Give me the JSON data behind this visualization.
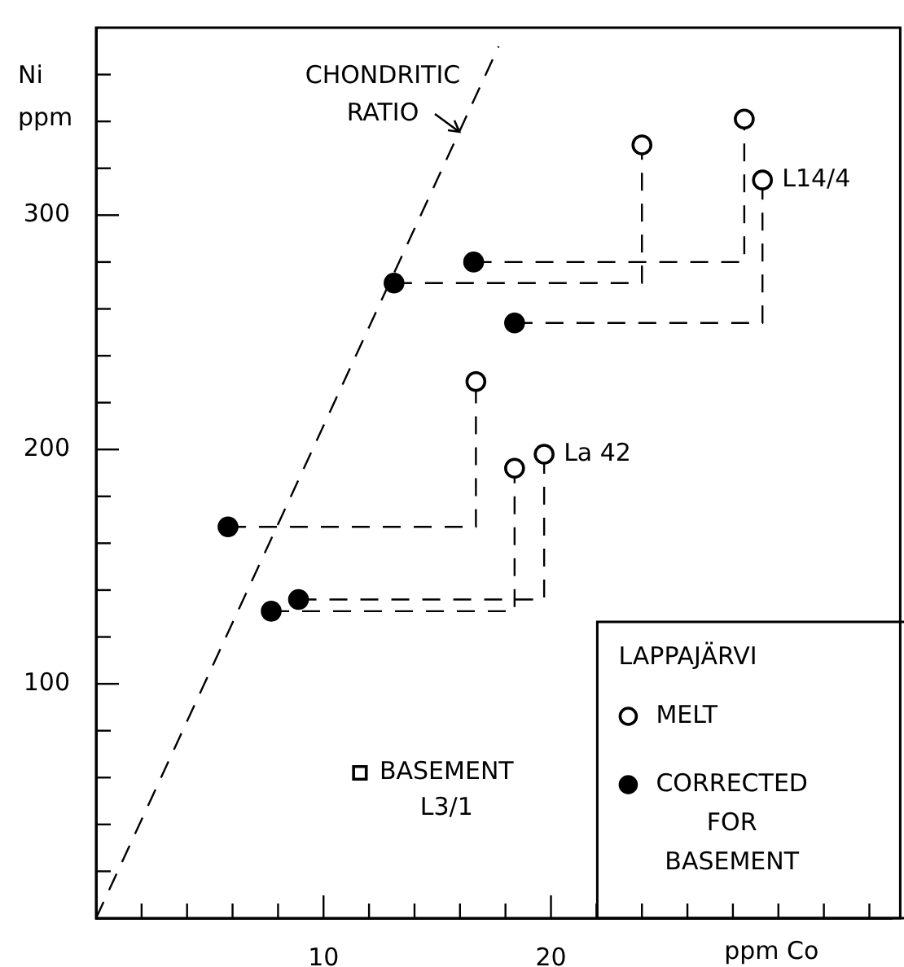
{
  "chart_data": {
    "type": "scatter",
    "xlabel": "ppm Co",
    "ylabel": "Ni ppm",
    "xlim": [
      0,
      35
    ],
    "ylim": [
      0,
      380
    ],
    "xticks": [
      {
        "value": 2,
        "label": null
      },
      {
        "value": 4,
        "label": null
      },
      {
        "value": 6,
        "label": null
      },
      {
        "value": 8,
        "label": null
      },
      10,
      {
        "value": 12,
        "label": null
      },
      {
        "value": 14,
        "label": null
      },
      {
        "value": 16,
        "label": null
      },
      {
        "value": 18,
        "label": null
      },
      20,
      {
        "value": 22,
        "label": null
      },
      {
        "value": 24,
        "label": null
      },
      {
        "value": 26,
        "label": null
      },
      {
        "value": 28,
        "label": null
      },
      {
        "value": 30,
        "label": null
      },
      {
        "value": 32,
        "label": null
      },
      {
        "value": 34,
        "label": null
      }
    ],
    "yticks": [
      {
        "value": 20,
        "label": null
      },
      {
        "value": 40,
        "label": null
      },
      {
        "value": 60,
        "label": null
      },
      {
        "value": 80,
        "label": null
      },
      100,
      {
        "value": 120,
        "label": null
      },
      {
        "value": 140,
        "label": null
      },
      {
        "value": 160,
        "label": null
      },
      {
        "value": 180,
        "label": null
      },
      200,
      {
        "value": 220,
        "label": null
      },
      {
        "value": 240,
        "label": null
      },
      {
        "value": 260,
        "label": null
      },
      {
        "value": 280,
        "label": null
      },
      300,
      {
        "value": 320,
        "label": null
      },
      {
        "value": 340,
        "label": null
      },
      {
        "value": 360,
        "label": null
      }
    ],
    "legend": "bottom right",
    "legend_title": "LAPPAJÄRVI",
    "annotations": [
      "CHONDRITIC RATIO",
      {
        "text": "L14/4",
        "x": 29.3,
        "y": 315
      },
      {
        "text": "La 42",
        "x": 19.7,
        "y": 198
      },
      {
        "text": "BASEMENT L3/1",
        "x": 11.6,
        "y": 62
      }
    ],
    "series": [
      {
        "name": "MELT",
        "type": "scatter",
        "marker": "circle",
        "color": "#ffffff",
        "x": [
          24,
          28.5,
          29.3,
          16.7,
          18.4,
          19.7
        ],
        "values": [
          330,
          341,
          315,
          229,
          192,
          198
        ]
      },
      {
        "name": "CORRECTED FOR BASEMENT",
        "type": "scatter",
        "marker": "circle",
        "color": "#000000",
        "x": [
          13.1,
          16.6,
          18.4,
          5.8,
          7.7,
          8.9
        ],
        "values": [
          271,
          280,
          254,
          167,
          131,
          136
        ]
      },
      {
        "type": "scatter",
        "marker": "square",
        "color": "#ffffff",
        "x": [
          11.6
        ],
        "values": [
          62
        ]
      },
      {
        "type": "line",
        "marker": "none",
        "line_style": "dashed",
        "color": "#000000",
        "x": [
          0,
          17.7
        ],
        "values": [
          0,
          372
        ]
      },
      {
        "type": "line",
        "marker": "none",
        "line_style": "dashed",
        "color": "#000000",
        "x": [
          13.1,
          24,
          24
        ],
        "values": [
          271,
          271,
          330
        ]
      },
      {
        "type": "line",
        "marker": "none",
        "line_style": "dashed",
        "color": "#000000",
        "x": [
          16.6,
          28.5,
          28.5
        ],
        "values": [
          280,
          280,
          341
        ]
      },
      {
        "type": "line",
        "marker": "none",
        "line_style": "dashed",
        "color": "#000000",
        "x": [
          18.4,
          29.3,
          29.3
        ],
        "values": [
          254,
          254,
          315
        ]
      },
      {
        "type": "line",
        "marker": "none",
        "line_style": "dashed",
        "color": "#000000",
        "x": [
          5.8,
          16.7,
          16.7
        ],
        "values": [
          167,
          167,
          229
        ]
      },
      {
        "type": "line",
        "marker": "none",
        "line_style": "dashed",
        "color": "#000000",
        "x": [
          7.7,
          18.4,
          18.4
        ],
        "values": [
          131,
          131,
          192
        ]
      },
      {
        "type": "line",
        "marker": "none",
        "line_style": "dashed",
        "color": "#000000",
        "x": [
          8.9,
          19.7,
          19.7
        ],
        "values": [
          136,
          136,
          198
        ]
      }
    ]
  }
}
